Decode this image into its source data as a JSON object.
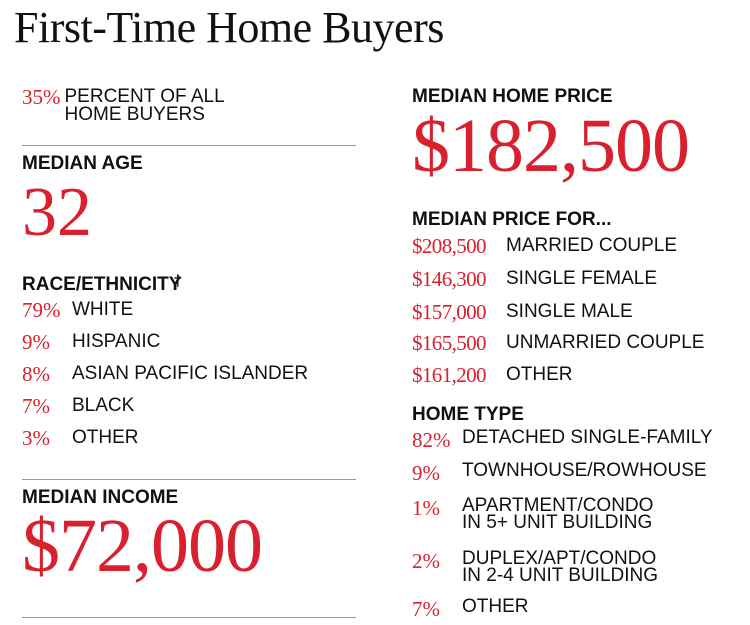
{
  "title": "First-Time Home Buyers",
  "chart_data": {
    "type": "table",
    "title": "First-Time Home Buyers",
    "share_of_buyers": {
      "value": "35%",
      "label_line1": "PERCENT OF ALL",
      "label_line2": "HOME BUYERS"
    },
    "median_age": {
      "label": "MEDIAN AGE",
      "value": "32"
    },
    "race_ethnicity": {
      "label": "RACE/ETHNICITY",
      "marker": "†",
      "rows": [
        {
          "value": "79%",
          "label": "WHITE"
        },
        {
          "value": "9%",
          "label": "HISPANIC"
        },
        {
          "value": "8%",
          "label": "ASIAN PACIFIC ISLANDER"
        },
        {
          "value": "7%",
          "label": "BLACK"
        },
        {
          "value": "3%",
          "label": "OTHER"
        }
      ]
    },
    "median_income": {
      "label": "MEDIAN INCOME",
      "value": "$72,000"
    },
    "median_home_price": {
      "label": "MEDIAN HOME PRICE",
      "value": "$182,500"
    },
    "median_price_for": {
      "label": "MEDIAN PRICE FOR...",
      "rows": [
        {
          "value": "$208,500",
          "label": "MARRIED COUPLE"
        },
        {
          "value": "$146,300",
          "label": "SINGLE FEMALE"
        },
        {
          "value": "$157,000",
          "label": "SINGLE MALE"
        },
        {
          "value": "$165,500",
          "label": "UNMARRIED COUPLE"
        },
        {
          "value": "$161,200",
          "label": "OTHER"
        }
      ]
    },
    "home_type": {
      "label": "HOME TYPE",
      "rows": [
        {
          "value": "82%",
          "line1": "DETACHED SINGLE-FAMILY",
          "line2": ""
        },
        {
          "value": "9%",
          "line1": "TOWNHOUSE/ROWHOUSE",
          "line2": ""
        },
        {
          "value": "1%",
          "line1": "APARTMENT/CONDO",
          "line2": "IN 5+ UNIT BUILDING"
        },
        {
          "value": "2%",
          "line1": "DUPLEX/APT/CONDO",
          "line2": "IN 2-4 UNIT BUILDING"
        },
        {
          "value": "7%",
          "line1": "OTHER",
          "line2": ""
        }
      ]
    },
    "colors": {
      "accent": "#d8202e",
      "text": "#111111",
      "rule": "#9a9a9a"
    }
  }
}
